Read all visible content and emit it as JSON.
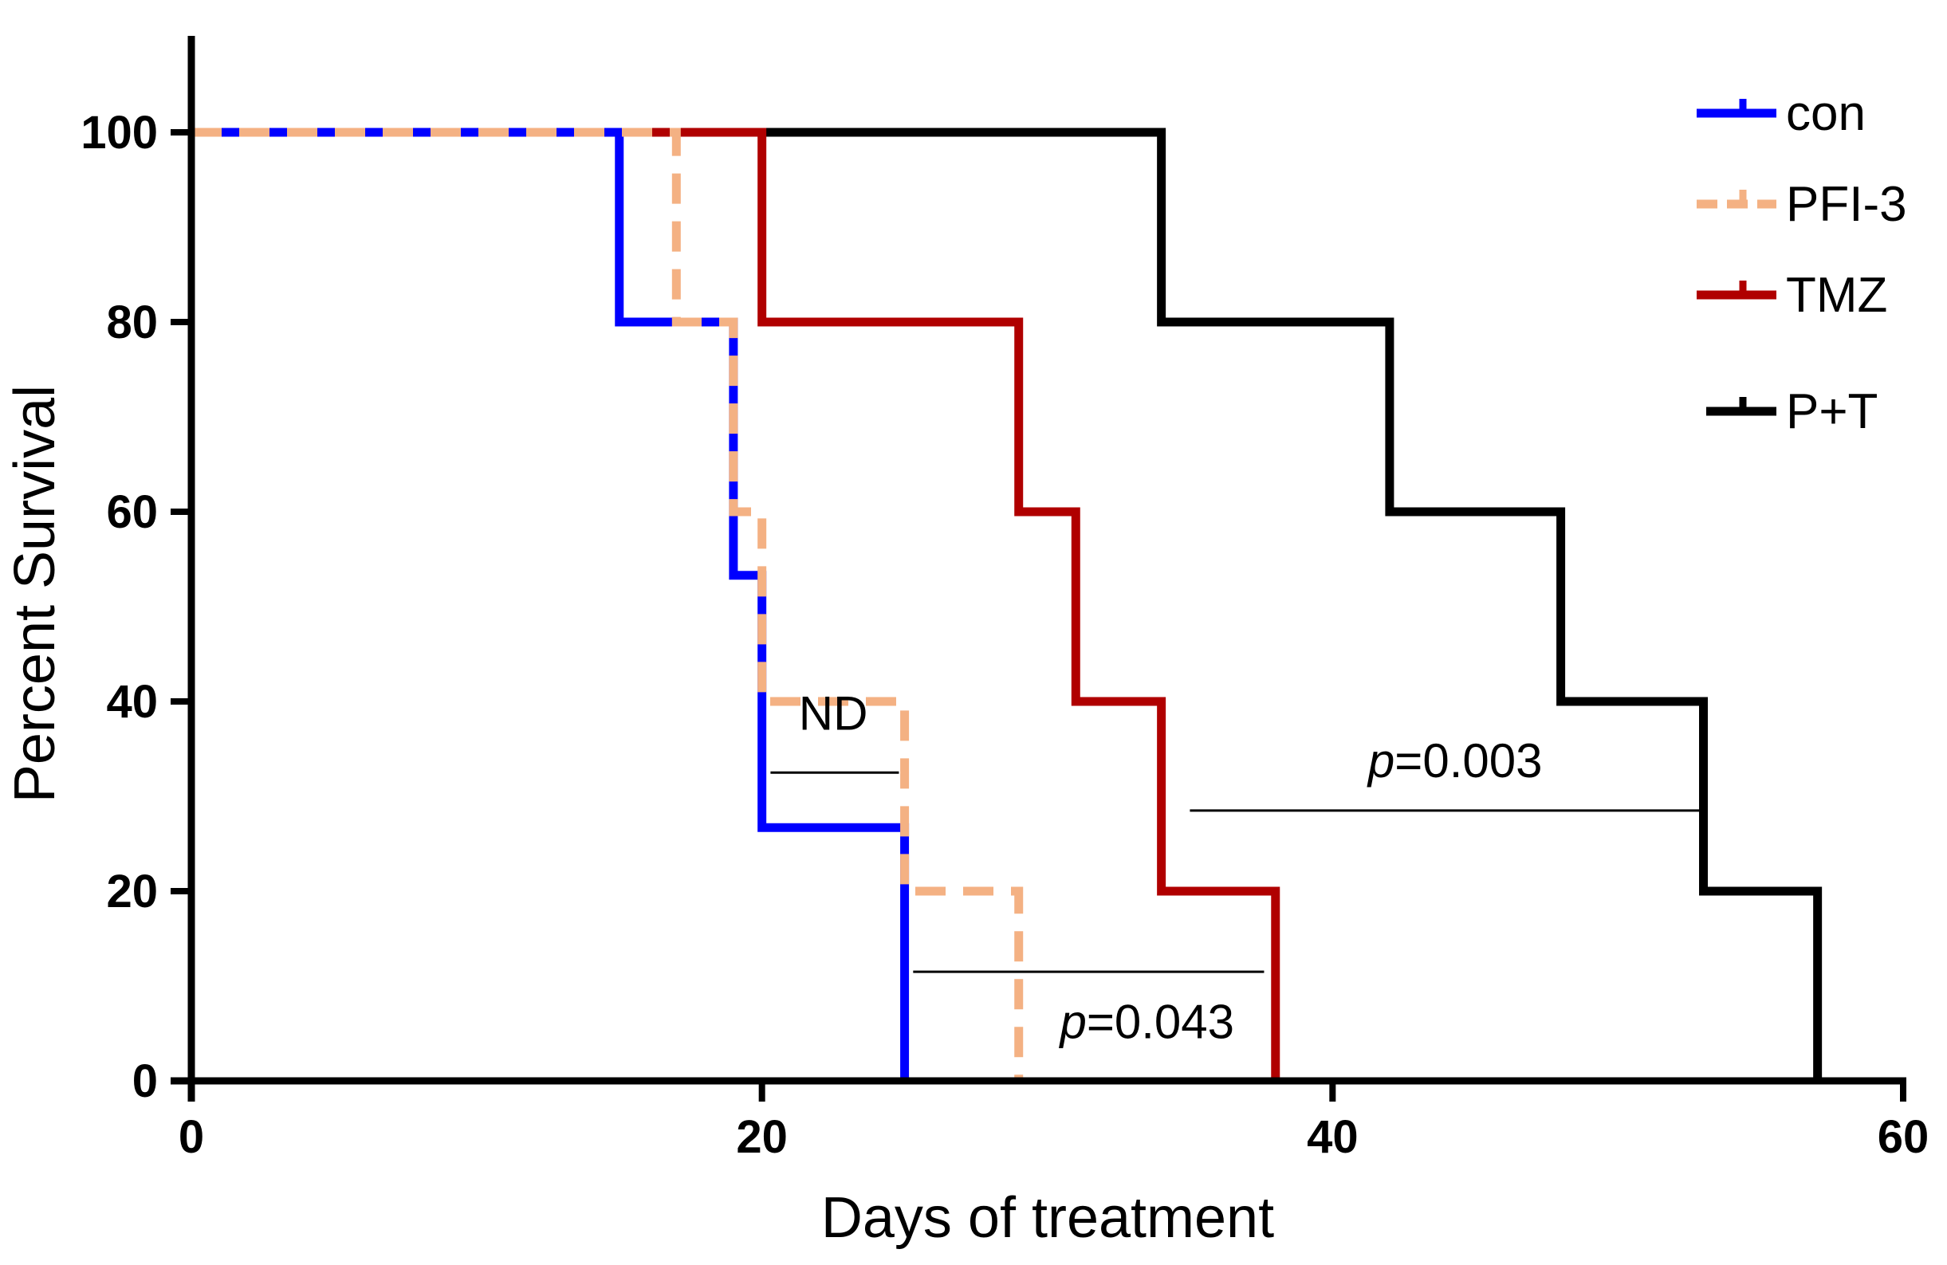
{
  "chart_data": {
    "type": "line",
    "subtype": "kaplan-meier-step",
    "xlabel": "Days of treatment",
    "ylabel": "Percent Survival",
    "xlim": [
      0,
      60
    ],
    "ylim": [
      0,
      110
    ],
    "xticks": [
      0,
      20,
      40,
      60
    ],
    "yticks": [
      0,
      20,
      40,
      60,
      80,
      100
    ],
    "grid": false,
    "legend_position": "top-right",
    "series": [
      {
        "name": "con",
        "color": "#0000ff",
        "dash": "solid",
        "steps": [
          [
            0,
            100
          ],
          [
            15,
            80
          ],
          [
            19,
            53.3
          ],
          [
            20,
            26.7
          ],
          [
            25,
            0
          ]
        ]
      },
      {
        "name": "PFI-3",
        "color": "#f4b183",
        "dash": "dashed",
        "steps": [
          [
            0,
            100
          ],
          [
            17,
            80
          ],
          [
            19,
            60
          ],
          [
            20,
            40
          ],
          [
            25,
            20
          ],
          [
            29,
            0
          ]
        ]
      },
      {
        "name": "TMZ",
        "color": "#b00000",
        "dash": "solid",
        "steps": [
          [
            0,
            100
          ],
          [
            20,
            80
          ],
          [
            29,
            60
          ],
          [
            31,
            40
          ],
          [
            34,
            20
          ],
          [
            38,
            0
          ]
        ]
      },
      {
        "name": "P+T",
        "color": "#000000",
        "dash": "solid",
        "steps": [
          [
            0,
            100
          ],
          [
            34,
            80
          ],
          [
            42,
            60
          ],
          [
            48,
            40
          ],
          [
            53,
            20
          ],
          [
            57,
            0
          ]
        ]
      }
    ],
    "annotations": [
      {
        "type": "bracket",
        "p_prefix": "",
        "value": "ND",
        "x_range": [
          20.3,
          24.8
        ],
        "y": 32.5,
        "text_x": 22.5,
        "text_y": 37
      },
      {
        "type": "bracket",
        "p_prefix": "p",
        "value": "=0.003",
        "x_range": [
          35,
          53
        ],
        "y": 28.5,
        "text_x": 44.3,
        "text_y": 32
      },
      {
        "type": "bracket",
        "p_prefix": "p",
        "value": "=0.043",
        "x_range": [
          25.3,
          37.6
        ],
        "y": 11.5,
        "text_x": 33.5,
        "text_y": 4.5
      }
    ]
  }
}
